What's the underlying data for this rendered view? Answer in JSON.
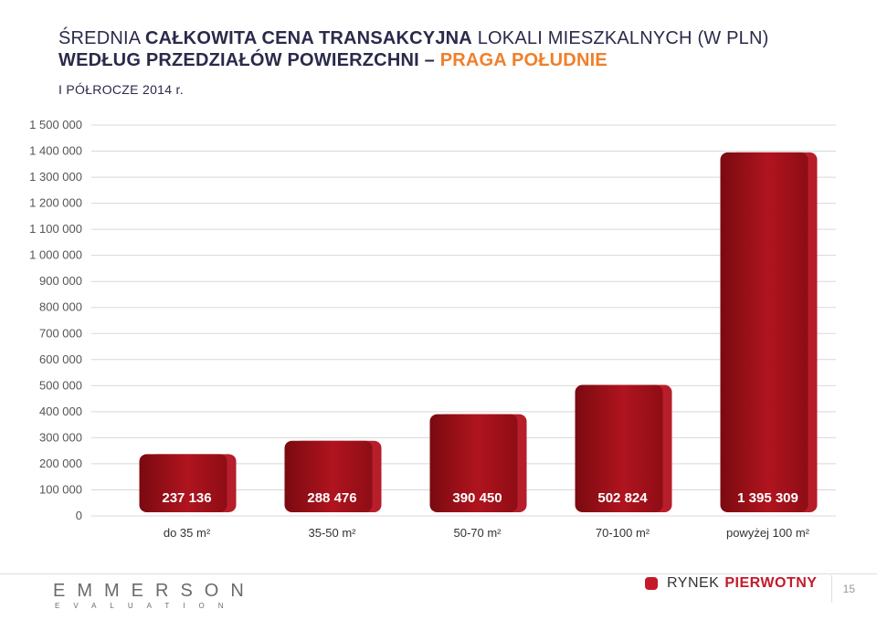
{
  "title": {
    "line1_pre": "ŚREDNIA ",
    "line1_bold": "CAŁKOWITA CENA TRANSAKCYJNA",
    "line1_post": " LOKALI MIESZKALNYCH (W PLN)",
    "line2_pre": "WEDŁUG PRZEDZIAŁÓW POWIERZCHNI – ",
    "line2_accent": "PRAGA POŁUDNIE"
  },
  "period": "I PÓŁROCZE 2014 r.",
  "colors": {
    "bar": "#b0141e",
    "bar_dark": "#7a0a10",
    "accent": "#f07f2a",
    "brand_red": "#c41a2a"
  },
  "chart_data": {
    "type": "bar",
    "categories": [
      "do 35 m²",
      "35-50 m²",
      "50-70 m²",
      "70-100 m²",
      "powyżej 100 m²"
    ],
    "values": [
      237136,
      288476,
      390450,
      502824,
      1395309
    ],
    "value_labels": [
      "237 136",
      "288 476",
      "390 450",
      "502 824",
      "1 395 309"
    ],
    "ylim": [
      0,
      1500000
    ],
    "yticks": [
      0,
      100000,
      200000,
      300000,
      400000,
      500000,
      600000,
      700000,
      800000,
      900000,
      1000000,
      1100000,
      1200000,
      1300000,
      1400000,
      1500000
    ],
    "ytick_labels": [
      "0",
      "100 000",
      "200 000",
      "300 000",
      "400 000",
      "500 000",
      "600 000",
      "700 000",
      "800 000",
      "900 000",
      "1 000 000",
      "1 100 000",
      "1 200 000",
      "1 300 000",
      "1 400 000",
      "1 500 000"
    ],
    "grid": true
  },
  "footer": {
    "logo_main": "EMMERSON",
    "logo_sub": "EVALUATION",
    "market_pre": "RYNEK",
    "market_bold": "PIERWOTNY",
    "page": "15"
  }
}
